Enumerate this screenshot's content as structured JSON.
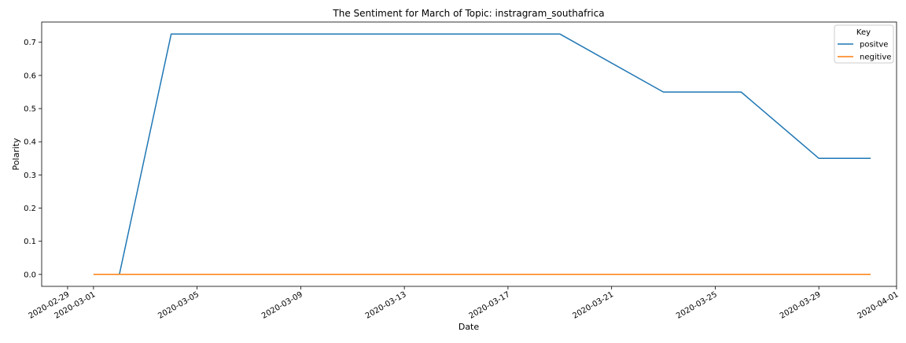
{
  "chart_data": {
    "type": "line",
    "title": "The Sentiment for March of Topic: instragram_southafrica",
    "xlabel": "Date",
    "ylabel": "Polarity",
    "x_type": "date",
    "xlim": [
      "2020-02-28",
      "2020-04-01"
    ],
    "ylim": [
      -0.036,
      0.761
    ],
    "x_ticks": [
      "2020-02-29",
      "2020-03-01",
      "2020-03-05",
      "2020-03-09",
      "2020-03-13",
      "2020-03-17",
      "2020-03-21",
      "2020-03-25",
      "2020-03-29",
      "2020-04-01"
    ],
    "y_ticks": [
      "0.0",
      "0.1",
      "0.2",
      "0.3",
      "0.4",
      "0.5",
      "0.6",
      "0.7"
    ],
    "grid": false,
    "legend": {
      "title": "Key",
      "position": "top-right"
    },
    "series": [
      {
        "name": "positve",
        "color": "#1f77b4",
        "x": [
          "2020-03-01",
          "2020-03-02",
          "2020-03-04",
          "2020-03-19",
          "2020-03-23",
          "2020-03-26",
          "2020-03-29",
          "2020-03-31"
        ],
        "y": [
          0.0,
          0.0,
          0.725,
          0.725,
          0.55,
          0.55,
          0.35,
          0.35
        ]
      },
      {
        "name": "negitive",
        "color": "#ff7f0e",
        "x": [
          "2020-03-01",
          "2020-03-31"
        ],
        "y": [
          0.0,
          0.0
        ]
      }
    ]
  }
}
